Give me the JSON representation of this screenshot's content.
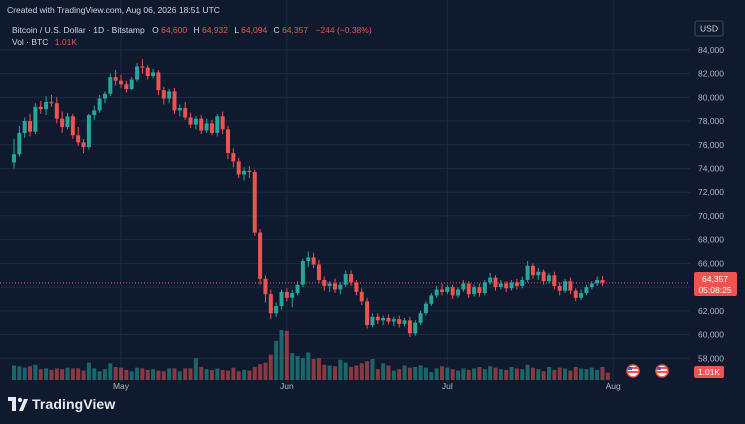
{
  "watermark": {
    "created": "Created with TradingView.com, Aug 06, 2026 18:51 UTC"
  },
  "legend": {
    "symbol": "Bitcoin / U.S. Dollar · 1D · Bitstamp",
    "open_label": "O",
    "open_value": "64,600",
    "high_label": "H",
    "high_value": "64,932",
    "low_label": "L",
    "low_value": "64,094",
    "close_label": "C",
    "close_value": "64,357",
    "change": "−244 (−0.38%)",
    "vol_label": "Vol · BTC",
    "vol_value": "1.01K"
  },
  "currency": "USD",
  "price_tag": {
    "price": "64,357",
    "countdown": "05:08:25"
  },
  "volume_tag": "1.01K",
  "brand": "TradingView",
  "colors": {
    "background": "#0f1a2e",
    "up": "#26a69a",
    "down": "#ef5350",
    "grid": "#1b2a44",
    "text": "#d1d4dc",
    "axis_text": "#b2b5be"
  },
  "chart_data": {
    "type": "candlestick",
    "y_ticks": [
      "58,000",
      "60,000",
      "62,000",
      "64,000",
      "66,000",
      "68,000",
      "70,000",
      "72,000",
      "74,000",
      "76,000",
      "78,000",
      "80,000",
      "82,000",
      "84,000"
    ],
    "ylim": [
      56000,
      85000
    ],
    "x_ticks": [
      {
        "label": "May",
        "day_index": 20
      },
      {
        "label": "Jun",
        "day_index": 51
      },
      {
        "label": "Jul",
        "day_index": 81
      },
      {
        "label": "Aug",
        "day_index": 112
      }
    ],
    "grid": true,
    "last_close_line": 64357,
    "series": [
      {
        "name": "Bitcoin / U.S. Dollar",
        "kind": "ohlc",
        "ohlc": [
          [
            74500,
            76500,
            74000,
            75200
          ],
          [
            75200,
            77600,
            75000,
            77000
          ],
          [
            77000,
            78300,
            76600,
            78000
          ],
          [
            78000,
            78600,
            76700,
            77100
          ],
          [
            77100,
            79500,
            76900,
            79200
          ],
          [
            79200,
            79700,
            78600,
            79000
          ],
          [
            79000,
            80100,
            78500,
            79600
          ],
          [
            79600,
            80200,
            79200,
            79500
          ],
          [
            79500,
            80000,
            77800,
            78200
          ],
          [
            78200,
            78800,
            77000,
            77500
          ],
          [
            77500,
            78700,
            77300,
            78400
          ],
          [
            78400,
            78600,
            76500,
            76800
          ],
          [
            76800,
            77500,
            75900,
            76200
          ],
          [
            76200,
            76500,
            75300,
            75800
          ],
          [
            75800,
            78600,
            75600,
            78500
          ],
          [
            78500,
            79300,
            78100,
            78900
          ],
          [
            78900,
            80200,
            78700,
            79900
          ],
          [
            79900,
            80500,
            79500,
            80300
          ],
          [
            80300,
            82000,
            80100,
            81700
          ],
          [
            81700,
            82300,
            81000,
            81400
          ],
          [
            81400,
            81900,
            80800,
            81100
          ],
          [
            81100,
            81400,
            80400,
            80700
          ],
          [
            80700,
            81700,
            80600,
            81500
          ],
          [
            81500,
            82900,
            81300,
            82600
          ],
          [
            82600,
            83200,
            82000,
            82500
          ],
          [
            82500,
            82700,
            81500,
            81800
          ],
          [
            81800,
            82400,
            81600,
            82100
          ],
          [
            82100,
            82300,
            80200,
            80600
          ],
          [
            80600,
            80900,
            79400,
            79900
          ],
          [
            79900,
            80700,
            79500,
            80500
          ],
          [
            80500,
            80800,
            78600,
            78900
          ],
          [
            78900,
            79400,
            78400,
            79100
          ],
          [
            79100,
            79600,
            78100,
            78300
          ],
          [
            78300,
            78700,
            77400,
            77700
          ],
          [
            77700,
            78400,
            77300,
            78200
          ],
          [
            78200,
            78500,
            76900,
            77200
          ],
          [
            77200,
            78200,
            77000,
            77800
          ],
          [
            77800,
            78100,
            76800,
            77000
          ],
          [
            77000,
            78600,
            76700,
            78400
          ],
          [
            78400,
            78800,
            76900,
            77300
          ],
          [
            77300,
            77600,
            74800,
            75300
          ],
          [
            75300,
            75700,
            74100,
            74600
          ],
          [
            74600,
            74900,
            73200,
            73500
          ],
          [
            73500,
            74100,
            73000,
            73800
          ],
          [
            73800,
            74200,
            73200,
            73700
          ],
          [
            73700,
            73900,
            68300,
            68600
          ],
          [
            68600,
            68900,
            64200,
            64700
          ],
          [
            64700,
            65000,
            62700,
            63400
          ],
          [
            63400,
            63800,
            61300,
            61800
          ],
          [
            61800,
            62700,
            61500,
            62400
          ],
          [
            62400,
            63800,
            62100,
            63600
          ],
          [
            63600,
            63900,
            62800,
            63100
          ],
          [
            63100,
            63800,
            62300,
            63500
          ],
          [
            63500,
            64500,
            63300,
            64200
          ],
          [
            64200,
            66400,
            64000,
            66200
          ],
          [
            66200,
            67000,
            65700,
            66500
          ],
          [
            66500,
            66900,
            65600,
            65900
          ],
          [
            65900,
            66300,
            64300,
            64600
          ],
          [
            64600,
            64900,
            63700,
            64100
          ],
          [
            64100,
            64500,
            63600,
            64300
          ],
          [
            64300,
            64700,
            63500,
            63800
          ],
          [
            63800,
            64400,
            63400,
            64200
          ],
          [
            64200,
            65400,
            64000,
            65100
          ],
          [
            65100,
            65400,
            64100,
            64400
          ],
          [
            64400,
            64600,
            63300,
            63600
          ],
          [
            63600,
            63900,
            62500,
            62800
          ],
          [
            62800,
            63100,
            60500,
            60800
          ],
          [
            60800,
            61800,
            60600,
            61500
          ],
          [
            61500,
            61800,
            60900,
            61200
          ],
          [
            61200,
            61600,
            60800,
            61400
          ],
          [
            61400,
            61700,
            60900,
            61100
          ],
          [
            61100,
            61500,
            60700,
            61300
          ],
          [
            61300,
            61600,
            60600,
            60900
          ],
          [
            60900,
            61400,
            60700,
            61200
          ],
          [
            61200,
            61500,
            59800,
            60100
          ],
          [
            60100,
            61200,
            59900,
            61000
          ],
          [
            61000,
            62000,
            60800,
            61800
          ],
          [
            61800,
            62800,
            61600,
            62600
          ],
          [
            62600,
            63500,
            62400,
            63300
          ],
          [
            63300,
            64100,
            63100,
            63800
          ],
          [
            63800,
            64300,
            63300,
            63600
          ],
          [
            63600,
            64200,
            63400,
            64000
          ],
          [
            64000,
            64200,
            63000,
            63300
          ],
          [
            63300,
            64000,
            63100,
            63800
          ],
          [
            63800,
            64600,
            63600,
            64300
          ],
          [
            64300,
            64500,
            63100,
            63400
          ],
          [
            63400,
            64200,
            63200,
            64000
          ],
          [
            64000,
            64300,
            63200,
            63500
          ],
          [
            63500,
            64600,
            63300,
            64400
          ],
          [
            64400,
            65200,
            64200,
            64800
          ],
          [
            64800,
            65000,
            63700,
            64000
          ],
          [
            64000,
            64600,
            63800,
            64300
          ],
          [
            64300,
            64500,
            63600,
            63900
          ],
          [
            63900,
            64600,
            63700,
            64400
          ],
          [
            64400,
            64700,
            63800,
            64100
          ],
          [
            64100,
            64900,
            63900,
            64600
          ],
          [
            64600,
            66200,
            64400,
            65800
          ],
          [
            65800,
            66000,
            64700,
            65000
          ],
          [
            65000,
            65600,
            64600,
            65300
          ],
          [
            65300,
            65500,
            64200,
            64500
          ],
          [
            64500,
            65200,
            64300,
            65000
          ],
          [
            65000,
            65300,
            63800,
            64100
          ],
          [
            64100,
            64400,
            63300,
            63700
          ],
          [
            63700,
            64700,
            63500,
            64500
          ],
          [
            64500,
            64800,
            63400,
            63700
          ],
          [
            63700,
            63900,
            62800,
            63100
          ],
          [
            63100,
            63800,
            62900,
            63500
          ],
          [
            63500,
            64200,
            63300,
            64000
          ],
          [
            64000,
            64500,
            63800,
            64300
          ],
          [
            64300,
            64900,
            64100,
            64600
          ],
          [
            64600,
            64932,
            64094,
            64357
          ]
        ]
      },
      {
        "name": "Volume",
        "unit": "BTC",
        "values": [
          2.0,
          1.9,
          1.7,
          1.9,
          2.1,
          1.5,
          1.6,
          1.4,
          1.6,
          1.5,
          1.7,
          1.6,
          1.6,
          1.3,
          2.4,
          1.6,
          1.2,
          1.5,
          2.3,
          1.8,
          1.7,
          1.4,
          1.2,
          1.7,
          1.6,
          1.4,
          1.5,
          1.3,
          1.2,
          1.6,
          1.6,
          1.2,
          1.6,
          1.6,
          3.0,
          1.8,
          1.5,
          1.4,
          1.6,
          1.4,
          1.3,
          1.7,
          1.2,
          1.4,
          1.3,
          1.8,
          2.2,
          2.4,
          3.5,
          5.4,
          6.9,
          6.8,
          3.7,
          3.3,
          3.0,
          3.8,
          2.9,
          3.0,
          2.1,
          2.0,
          1.9,
          2.8,
          2.4,
          1.8,
          2.0,
          2.3,
          2.6,
          2.9,
          1.5,
          2.3,
          2.0,
          1.3,
          1.5,
          2.0,
          1.7,
          1.8,
          2.0,
          1.7,
          1.1,
          1.6,
          1.9,
          1.7,
          1.5,
          1.3,
          1.6,
          1.4,
          1.6,
          1.8,
          1.5,
          1.9,
          1.7,
          1.5,
          1.4,
          1.8,
          1.6,
          1.5,
          2.1,
          1.7,
          1.5,
          1.2,
          1.8,
          1.4,
          1.7,
          1.6,
          1.3,
          1.8,
          1.6,
          1.5,
          1.7,
          1.4,
          1.8,
          1.01
        ]
      }
    ]
  }
}
